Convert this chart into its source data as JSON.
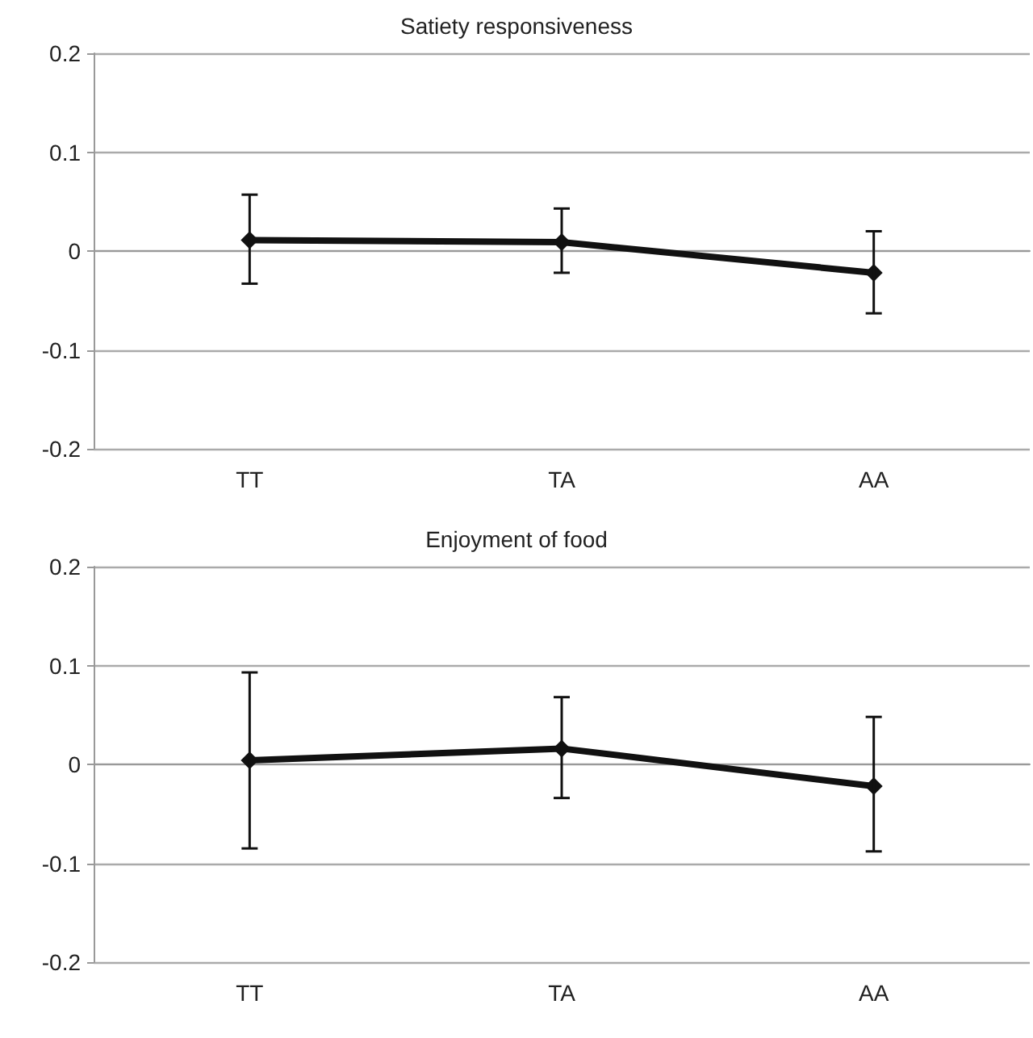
{
  "chart_data": [
    {
      "type": "line",
      "title": "Satiety responsiveness",
      "categories": [
        "TT",
        "TA",
        "AA"
      ],
      "values": [
        0.011,
        0.009,
        -0.022
      ],
      "errors": [
        [
          -0.033,
          0.057
        ],
        [
          -0.022,
          0.043
        ],
        [
          -0.063,
          0.02
        ]
      ],
      "color": "#111111",
      "ylim": [
        -0.2,
        0.2
      ],
      "yticks": [
        -0.2,
        -0.1,
        0,
        0.1,
        0.2
      ],
      "grid": "y",
      "marker": "diamond"
    },
    {
      "type": "line",
      "title": "Enjoyment of food",
      "categories": [
        "TT",
        "TA",
        "AA"
      ],
      "values": [
        0.004,
        0.016,
        -0.022
      ],
      "errors": [
        [
          -0.085,
          0.093
        ],
        [
          -0.034,
          0.068
        ],
        [
          -0.088,
          0.048
        ]
      ],
      "color": "#111111",
      "ylim": [
        -0.2,
        0.2
      ],
      "yticks": [
        -0.2,
        -0.1,
        0,
        0.1,
        0.2
      ],
      "grid": "y",
      "marker": "diamond"
    }
  ]
}
